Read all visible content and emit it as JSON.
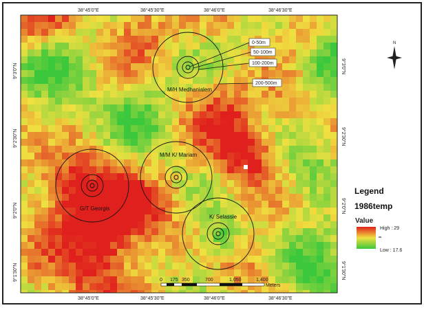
{
  "coordinates": {
    "longitudes": [
      "38°45'0\"E",
      "38°45'30\"E",
      "38°46'0\"E",
      "38°46'30\"E"
    ],
    "latitudes": [
      "9°3'0\"N",
      "9°2'30\"N",
      "9°2'0\"N",
      "9°1'30\"N"
    ]
  },
  "sites": [
    "M/H Medhanialem",
    "M/M K/ Mariam",
    "G/T Georgis",
    "K/ Selassie"
  ],
  "buffers": [
    "0-50m",
    "50-100m",
    "100-200m",
    "200-500m"
  ],
  "north": "N",
  "legend": {
    "title": "Legend",
    "layer": "1986temp",
    "field": "Value",
    "high": "High : 29",
    "low": "Low : 17.6"
  },
  "scale_bar": {
    "labels": [
      "0",
      "175",
      "350",
      "700",
      "1,050",
      "1,400"
    ],
    "unit": "Meters"
  }
}
